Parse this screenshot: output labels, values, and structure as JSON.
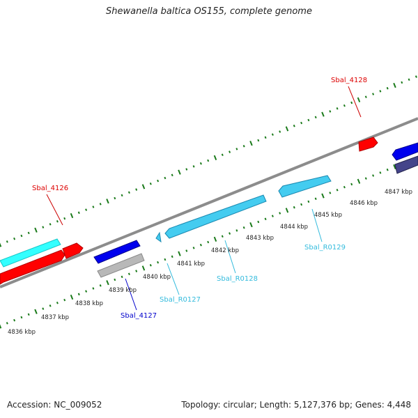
{
  "title": "Shewanella baltica OS155, complete genome",
  "footer": {
    "accession": "Accession: NC_009052",
    "summary": "Topology: circular; Length: 5,127,376 bp; Genes: 4,448"
  },
  "colors": {
    "backbone": "#8c8c8c",
    "tick": "#1a7a1a",
    "gene_red": "#ff0000",
    "gene_cyan": "#33ffff",
    "gene_blue": "#0000ee",
    "gene_gray": "#b8b8b8",
    "gene_lightblue": "#44ccf0",
    "gene_navy": "#44448a",
    "label_red": "#dd0000",
    "label_blue": "#0000cc",
    "label_lightblue": "#33bbdd"
  },
  "scale_labels": [
    "4836 kbp",
    "4837 kbp",
    "4838 kbp",
    "4839 kbp",
    "4840 kbp",
    "4841 kbp",
    "4842 kbp",
    "4843 kbp",
    "4844 kbp",
    "4845 kbp",
    "4846 kbp",
    "4847 kbp"
  ],
  "gene_labels": [
    "Sbal_4126",
    "Sbal_4127",
    "Sbal_R0127",
    "Sbal_R0128",
    "Sbal_R0129",
    "Sbal_4128"
  ]
}
